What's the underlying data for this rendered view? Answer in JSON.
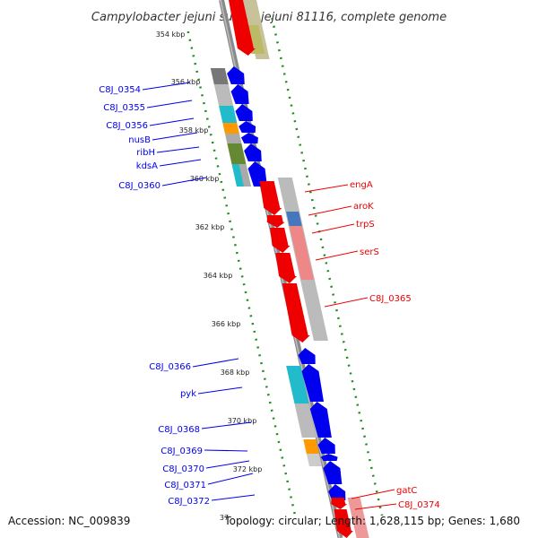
{
  "title": "Campylobacter jejuni subsp. jejuni 81116, complete genome",
  "accession_text": "Accession: NC_009839",
  "topology_text": "Topology: circular; Length: 1,628,115 bp; Genes: 1,680",
  "colors": {
    "forward": "#0000ee",
    "reverse": "#ee0000",
    "backbone": "#888888",
    "tick": "#228b22"
  },
  "scale_ticks": [
    {
      "label": "354 kbp"
    },
    {
      "label": "356 kbp"
    },
    {
      "label": "358 kbp"
    },
    {
      "label": "360 kbp"
    },
    {
      "label": "362 kbp"
    },
    {
      "label": "364 kbp"
    },
    {
      "label": "366 kbp"
    },
    {
      "label": "368 kbp"
    },
    {
      "label": "370 kbp"
    },
    {
      "label": "372 kbp"
    },
    {
      "label": "37"
    }
  ],
  "forward_labels": [
    {
      "text": "C8J_0354"
    },
    {
      "text": "C8J_0355"
    },
    {
      "text": "C8J_0356"
    },
    {
      "text": "nusB"
    },
    {
      "text": "ribH"
    },
    {
      "text": "kdsA"
    },
    {
      "text": "C8J_0360"
    },
    {
      "text": "C8J_0366"
    },
    {
      "text": "pyk"
    },
    {
      "text": "C8J_0368"
    },
    {
      "text": "C8J_0369"
    },
    {
      "text": "C8J_0370"
    },
    {
      "text": "C8J_0371"
    },
    {
      "text": "C8J_0372"
    }
  ],
  "reverse_labels": [
    {
      "text": "engA"
    },
    {
      "text": "aroK"
    },
    {
      "text": "trpS"
    },
    {
      "text": "serS"
    },
    {
      "text": "C8J_0365"
    },
    {
      "text": "gatC"
    },
    {
      "text": "C8J_0374"
    }
  ]
}
